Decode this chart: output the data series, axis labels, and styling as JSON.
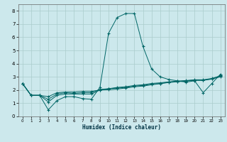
{
  "title": "",
  "xlabel": "Humidex (Indice chaleur)",
  "bg_color": "#cce8ec",
  "grid_color": "#aacccc",
  "line_color": "#006666",
  "xlim": [
    -0.5,
    23.5
  ],
  "ylim": [
    0,
    8.5
  ],
  "xticks": [
    0,
    1,
    2,
    3,
    4,
    5,
    6,
    7,
    8,
    9,
    10,
    11,
    12,
    13,
    14,
    15,
    16,
    17,
    18,
    19,
    20,
    21,
    22,
    23
  ],
  "yticks": [
    0,
    1,
    2,
    3,
    4,
    5,
    6,
    7,
    8
  ],
  "lines": [
    {
      "x": [
        0,
        1,
        2,
        3,
        4,
        5,
        6,
        7,
        8,
        9,
        10,
        11,
        12,
        13,
        14,
        15,
        16,
        17,
        18,
        19,
        20,
        21,
        22,
        23
      ],
      "y": [
        2.5,
        1.6,
        1.6,
        0.5,
        1.2,
        1.5,
        1.5,
        1.35,
        1.3,
        2.2,
        6.3,
        7.5,
        7.8,
        7.8,
        5.3,
        3.6,
        3.0,
        2.8,
        2.7,
        2.6,
        2.7,
        1.8,
        2.5,
        3.2
      ]
    },
    {
      "x": [
        0,
        1,
        2,
        3,
        4,
        5,
        6,
        7,
        8,
        9,
        10,
        11,
        12,
        13,
        14,
        15,
        16,
        17,
        18,
        19,
        20,
        21,
        22,
        23
      ],
      "y": [
        2.5,
        1.6,
        1.6,
        1.1,
        1.6,
        1.7,
        1.7,
        1.7,
        1.7,
        2.0,
        2.1,
        2.15,
        2.2,
        2.3,
        2.35,
        2.45,
        2.5,
        2.6,
        2.65,
        2.7,
        2.75,
        2.75,
        2.85,
        3.1
      ]
    },
    {
      "x": [
        0,
        1,
        2,
        3,
        4,
        5,
        6,
        7,
        8,
        9,
        10,
        11,
        12,
        13,
        14,
        15,
        16,
        17,
        18,
        19,
        20,
        21,
        22,
        23
      ],
      "y": [
        2.5,
        1.6,
        1.6,
        1.3,
        1.7,
        1.8,
        1.75,
        1.8,
        1.8,
        2.05,
        2.1,
        2.2,
        2.25,
        2.35,
        2.4,
        2.5,
        2.55,
        2.62,
        2.68,
        2.72,
        2.78,
        2.78,
        2.88,
        3.05
      ]
    },
    {
      "x": [
        0,
        1,
        2,
        3,
        4,
        5,
        6,
        7,
        8,
        9,
        10,
        11,
        12,
        13,
        14,
        15,
        16,
        17,
        18,
        19,
        20,
        21,
        22,
        23
      ],
      "y": [
        2.5,
        1.6,
        1.6,
        1.5,
        1.8,
        1.85,
        1.85,
        1.9,
        1.9,
        2.0,
        2.02,
        2.08,
        2.15,
        2.25,
        2.3,
        2.4,
        2.48,
        2.57,
        2.63,
        2.68,
        2.73,
        2.73,
        2.83,
        3.0
      ]
    }
  ]
}
